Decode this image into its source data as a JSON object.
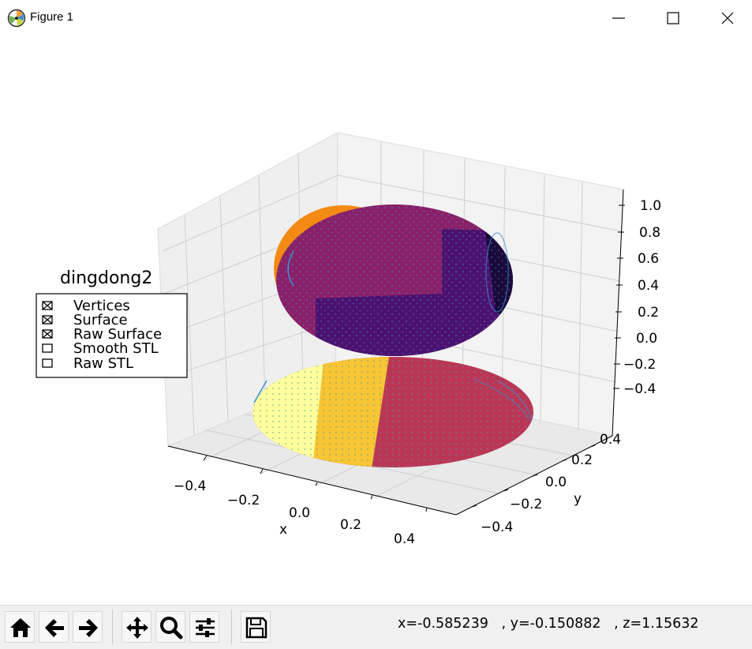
{
  "window": {
    "title": "Figure 1",
    "icons": [
      "matplotlib-logo-icon",
      "minimize-icon",
      "maximize-icon",
      "close-icon"
    ]
  },
  "plot": {
    "type": "3d-surface-scatter",
    "legend": {
      "title": "dingdong2",
      "entries": [
        {
          "label": "Vertices",
          "checked": true
        },
        {
          "label": "Surface",
          "checked": true
        },
        {
          "label": "Raw Surface",
          "checked": true
        },
        {
          "label": "Smooth STL",
          "checked": false
        },
        {
          "label": "Raw STL",
          "checked": false
        }
      ]
    },
    "x_axis": {
      "label": "x",
      "ticks": [
        "−0.4",
        "−0.2",
        "0.0",
        "0.2",
        "0.4"
      ]
    },
    "y_axis": {
      "label": "y",
      "ticks": [
        "−0.4",
        "−0.2",
        "0.0",
        "0.2",
        "0.4"
      ]
    },
    "z_axis": {
      "label": "",
      "ticks": [
        "−0.4",
        "−0.2",
        "0.0",
        "0.2",
        "0.4",
        "0.6",
        "0.8",
        "1.0"
      ]
    },
    "colors": {
      "upper_orange": "#f28a14",
      "upper_red": "#e0542c",
      "upper_purple": "#8a2068",
      "upper_violet": "#4c1270",
      "upper_dark": "#1a0a3a",
      "lower_yellow": "#ffff9e",
      "lower_gold": "#f8c535",
      "lower_crimson": "#bb3656",
      "points": "#3c8fd0"
    }
  },
  "toolbar": {
    "buttons": [
      {
        "name": "home-button",
        "icon": "home-icon"
      },
      {
        "name": "back-button",
        "icon": "arrow-left-icon"
      },
      {
        "name": "forward-button",
        "icon": "arrow-right-icon"
      },
      {
        "name": "pan-button",
        "icon": "move-icon"
      },
      {
        "name": "zoom-button",
        "icon": "magnifier-icon"
      },
      {
        "name": "configure-subplots-button",
        "icon": "sliders-icon"
      },
      {
        "name": "save-button",
        "icon": "floppy-disk-icon"
      }
    ],
    "coordinates": "x=-0.585239   , y=-0.150882   , z=1.15632"
  }
}
